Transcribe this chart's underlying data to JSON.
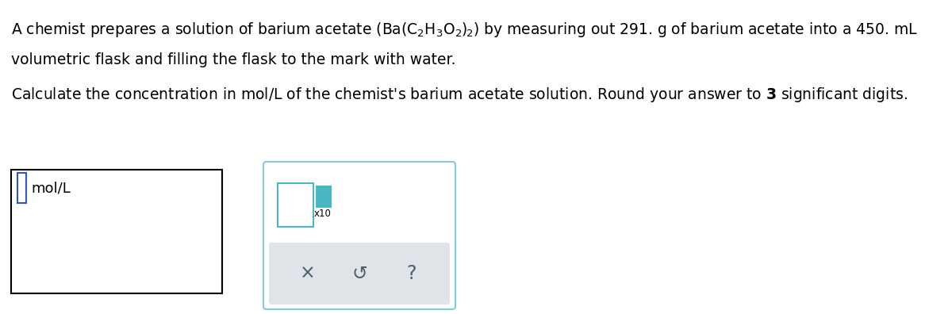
{
  "bg_color": "#ffffff",
  "text_color": "#000000",
  "line1": "A chemist prepares a solution of barium acetate $\\left(\\mathrm{Ba}\\left(\\mathrm{C_2H_3O_2}\\right)_{\\!2}\\right)$ by measuring out 291. g of barium acetate into a 450. mL",
  "line2": "volumetric flask and filling the flask to the mark with water.",
  "line3": "Calculate the concentration in mol/L of the chemist's barium acetate solution. Round your answer to $\\mathbf{3}$ significant digits.",
  "answer_label": "mol/L",
  "cursor_color": "#3355cc",
  "teal_color": "#4ab8c4",
  "popup_border_color": "#7ecfda",
  "btn_bar_color": "#e0e4e8",
  "btn_text_color": "#4a6070",
  "font_size_main": 13.5,
  "font_size_label": 13,
  "font_size_x10": 8.5,
  "font_size_buttons": 17
}
